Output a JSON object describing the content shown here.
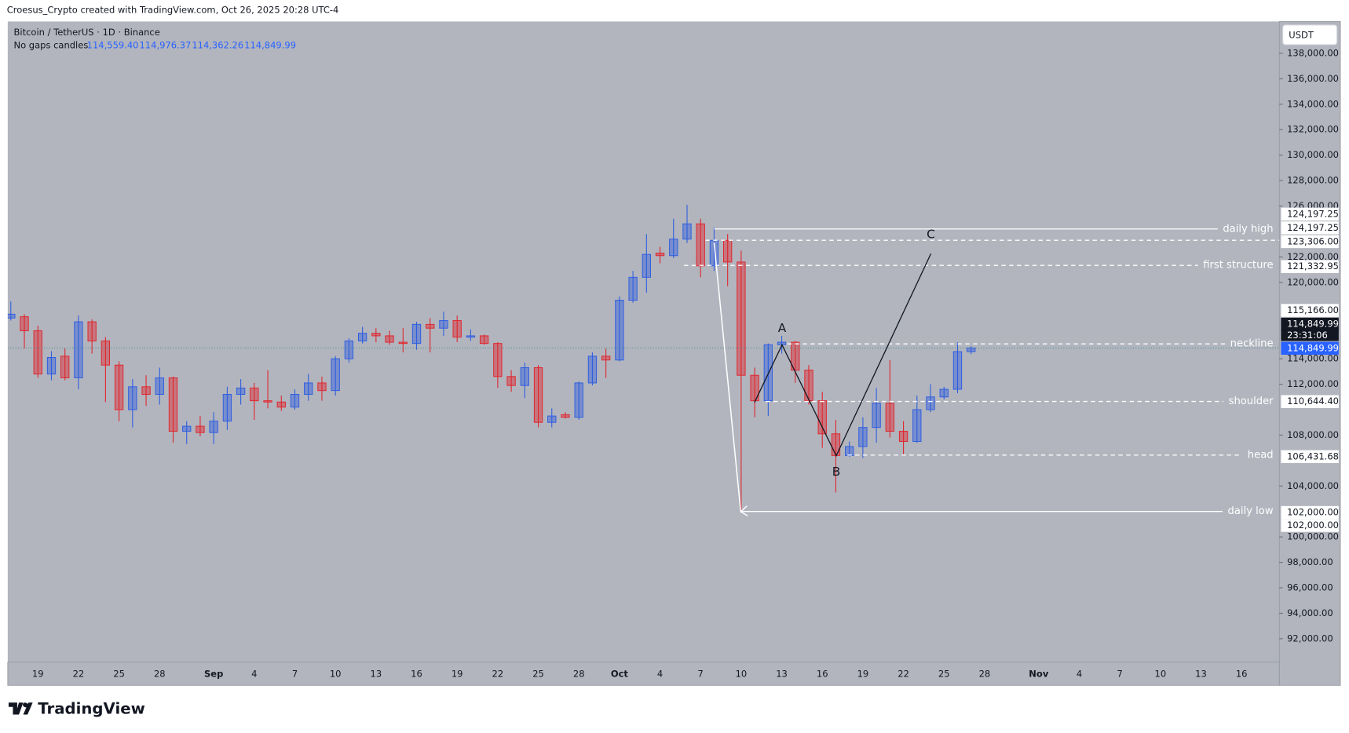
{
  "header": {
    "attribution": "Croesus_Crypto created with TradingView.com, Oct 26, 2025 20:28 UTC-4",
    "logo": "TradingView"
  },
  "chart_data": {
    "type": "candlestick",
    "title": "Bitcoin / TetherUS · 1D · Binance",
    "subtitle": "No gaps candles",
    "ohlc_legend": [
      "114,559.40",
      "114,976.37",
      "114,362.26",
      "114,849.99"
    ],
    "currency": "USDT",
    "up_color": "#2f5ee0",
    "down_color": "#e0262e",
    "categories": [
      null,
      null,
      "19",
      null,
      null,
      "22",
      null,
      null,
      "25",
      null,
      null,
      "28",
      null,
      null,
      null,
      "Sep",
      null,
      null,
      "4",
      null,
      null,
      "7",
      null,
      null,
      "10",
      null,
      null,
      "13",
      null,
      null,
      "16",
      null,
      null,
      "19",
      null,
      null,
      "22",
      null,
      null,
      "25",
      null,
      null,
      "28",
      null,
      null,
      "Oct",
      null,
      null,
      "4",
      null,
      null,
      "7",
      null,
      null,
      "10",
      null,
      null,
      "13",
      null,
      null,
      "16",
      null,
      null,
      "19",
      null,
      null,
      "22",
      null,
      null,
      "25",
      null,
      null,
      "28",
      null,
      null,
      null,
      "Nov",
      null,
      null,
      "4",
      null,
      null,
      "7",
      null,
      null,
      "10",
      null,
      null,
      "13",
      null,
      null,
      "16",
      null,
      null
    ],
    "open": [
      117200,
      117300,
      116200,
      112800,
      114200,
      112500,
      116900,
      115400,
      113500,
      110000,
      111800,
      111200,
      112500,
      108300,
      108700,
      108200,
      109100,
      111200,
      111700,
      110700,
      110600,
      110200,
      111200,
      112100,
      111500,
      114000,
      115400,
      116000,
      115800,
      115300,
      115200,
      116700,
      116400,
      117000,
      115700,
      115800,
      115200,
      112600,
      111900,
      113300,
      109000,
      109600,
      109400,
      112100,
      114200,
      113900,
      118600,
      120400,
      122300,
      122100,
      123400,
      124600,
      121300,
      123300,
      121600,
      112700,
      110700,
      115100,
      115300,
      113100,
      110700,
      108100,
      106400,
      107100,
      108600,
      110500,
      108300,
      107500,
      110000,
      111000,
      111600,
      114559.4,
      null,
      null,
      null,
      null,
      null,
      null,
      null,
      null,
      null,
      null,
      null,
      null,
      null,
      null,
      null,
      null,
      null,
      null,
      null,
      null,
      null,
      null
    ],
    "high": [
      118500,
      117500,
      116600,
      114600,
      114800,
      117400,
      117100,
      115700,
      113800,
      112400,
      112700,
      113300,
      112600,
      109100,
      109500,
      109800,
      111800,
      112400,
      112100,
      113100,
      111100,
      111600,
      112800,
      112600,
      114200,
      115600,
      116500,
      116400,
      116200,
      116400,
      116900,
      117200,
      117700,
      117400,
      116300,
      115900,
      115300,
      113100,
      113700,
      113500,
      110100,
      109800,
      112200,
      114500,
      114800,
      118900,
      120900,
      123800,
      122800,
      125000,
      126100,
      125000,
      124300,
      123800,
      122500,
      113300,
      115200,
      115800,
      115400,
      113500,
      111400,
      109200,
      107500,
      109400,
      111700,
      113900,
      109100,
      111100,
      112000,
      111800,
      115300,
      114976.37,
      null,
      null,
      null,
      null,
      null,
      null,
      null,
      null,
      null,
      null,
      null,
      null,
      null,
      null,
      null,
      null,
      null,
      null,
      null,
      null,
      null,
      null
    ],
    "low": [
      117000,
      114800,
      112500,
      112300,
      112300,
      111600,
      114400,
      110600,
      109100,
      108600,
      110300,
      110400,
      107400,
      107300,
      107900,
      107300,
      108400,
      110400,
      109200,
      110100,
      109900,
      110000,
      110700,
      110700,
      111100,
      113700,
      115200,
      115300,
      115100,
      114500,
      114700,
      114500,
      115800,
      115300,
      115400,
      115100,
      111700,
      111400,
      110900,
      108600,
      108600,
      109300,
      109200,
      111900,
      112500,
      113800,
      118400,
      119200,
      121500,
      121900,
      123100,
      120400,
      120900,
      119700,
      102000,
      109400,
      109500,
      114400,
      112100,
      110400,
      107000,
      103500,
      106300,
      106200,
      107400,
      107800,
      106500,
      107400,
      109800,
      110800,
      111300,
      114362.26,
      null,
      null,
      null,
      null,
      null,
      null,
      null,
      null,
      null,
      null,
      null,
      null,
      null,
      null,
      null,
      null,
      null,
      null,
      null,
      null,
      null,
      null
    ],
    "close": [
      117500,
      116200,
      112800,
      114100,
      112500,
      116900,
      115400,
      113500,
      110000,
      111800,
      111200,
      112500,
      108300,
      108700,
      108200,
      109100,
      111200,
      111700,
      110700,
      110600,
      110200,
      111200,
      112100,
      111500,
      114000,
      115400,
      116000,
      115800,
      115300,
      115200,
      116700,
      116400,
      117000,
      115700,
      115800,
      115200,
      112600,
      111900,
      113300,
      109000,
      109500,
      109400,
      112100,
      114200,
      113900,
      118600,
      120400,
      122200,
      122100,
      123400,
      124600,
      121300,
      123300,
      121600,
      112700,
      110700,
      115100,
      115300,
      113100,
      110700,
      108100,
      106400,
      107100,
      108600,
      110500,
      108300,
      107500,
      110000,
      111000,
      111600,
      114560,
      114849.99,
      null,
      null,
      null,
      null,
      null,
      null,
      null,
      null,
      null,
      null,
      null,
      null,
      null,
      null,
      null,
      null,
      null,
      null,
      null,
      null,
      null,
      null
    ],
    "ylim": [
      90160,
      140500
    ],
    "yticks": [
      {
        "value": 92000,
        "label": "92,000.00"
      },
      {
        "value": 94000,
        "label": "94,000.00"
      },
      {
        "value": 96000,
        "label": "96,000.00"
      },
      {
        "value": 98000,
        "label": "98,000.00"
      },
      {
        "value": 100000,
        "label": "100,000.00"
      },
      {
        "value": 104000,
        "label": "104,000.00"
      },
      {
        "value": 108000,
        "label": "108,000.00"
      },
      {
        "value": 112000,
        "label": "112,000.00"
      },
      {
        "value": 114000,
        "label": "114,000.00"
      },
      {
        "value": 120000,
        "label": "120,000.00"
      },
      {
        "value": 122000,
        "label": "122,000.00"
      },
      {
        "value": 126000,
        "label": "126,000.00"
      },
      {
        "value": 128000,
        "label": "128,000.00"
      },
      {
        "value": 130000,
        "label": "130,000.00"
      },
      {
        "value": 132000,
        "label": "132,000.00"
      },
      {
        "value": 134000,
        "label": "134,000.00"
      },
      {
        "value": 136000,
        "label": "136,000.00"
      },
      {
        "value": 138000,
        "label": "138,000.00"
      }
    ],
    "levels": [
      {
        "label": "daily high",
        "value": 124197.25,
        "style": "solid"
      },
      {
        "value": 123306.0,
        "style": "dashed"
      },
      {
        "label": "first structure",
        "value": 121332.95,
        "style": "dashed"
      },
      {
        "label": "neckline",
        "value": 115166.0,
        "style": "dashed"
      },
      {
        "label": "shoulder",
        "value": 110644.4,
        "style": "dashed"
      },
      {
        "label": "head",
        "value": 106431.68,
        "style": "dashed"
      },
      {
        "label": "daily low",
        "value": 102000.0,
        "style": "solid"
      }
    ],
    "price_tags": [
      {
        "value": 124197.25,
        "label": "124,197.25"
      },
      {
        "value": 124197.25,
        "label": "124,197.25"
      },
      {
        "value": 123306.0,
        "label": "123,306.00"
      },
      {
        "value": 121332.95,
        "label": "121,332.95"
      },
      {
        "value": 115166.0,
        "label": "115,166.00"
      },
      {
        "value": 114849.99,
        "label": "114,849.99"
      },
      {
        "value": 114849.99,
        "label": "114,849.99"
      },
      {
        "value": 110644.4,
        "label": "110,644.40"
      },
      {
        "value": 106431.68,
        "label": "106,431.68"
      },
      {
        "value": 102000.0,
        "label": "102,000.00"
      },
      {
        "value": 102000.0,
        "label": "102,000.00"
      }
    ],
    "countdown": "23:31:06",
    "pattern_labels": [
      "A",
      "B",
      "C"
    ]
  }
}
